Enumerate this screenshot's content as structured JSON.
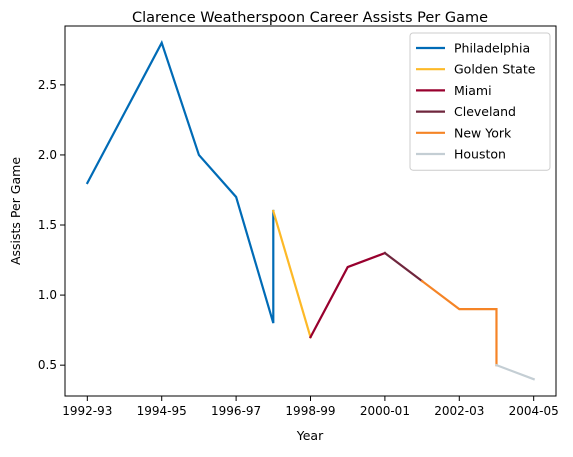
{
  "chart_data": {
    "type": "line",
    "title": "Clarence Weatherspoon Career Assists Per Game",
    "xlabel": "Year",
    "ylabel": "Assists Per Game",
    "x_tick_labels": [
      "1992-93",
      "1994-95",
      "1996-97",
      "1998-99",
      "2000-01",
      "2002-03",
      "2004-05"
    ],
    "x_tick_positions": [
      0,
      2,
      4,
      6,
      8,
      10,
      12
    ],
    "y_ticks": [
      0.5,
      1.0,
      1.5,
      2.0,
      2.5
    ],
    "y_tick_labels": [
      "0.5",
      "1.0",
      "1.5",
      "2.0",
      "2.5"
    ],
    "xlim": [
      -0.6,
      12.6
    ],
    "ylim": [
      0.28,
      2.92
    ],
    "grid": false,
    "legend_position": "top-right",
    "series": [
      {
        "name": "Philadelphia",
        "color": "#006bb6",
        "points": [
          [
            0,
            1.8
          ],
          [
            1,
            2.3
          ],
          [
            2,
            2.8
          ],
          [
            3,
            2.0
          ],
          [
            4,
            1.7
          ],
          [
            5,
            0.8
          ],
          [
            5,
            1.6
          ]
        ]
      },
      {
        "name": "Golden State",
        "color": "#fdb927",
        "points": [
          [
            5,
            1.6
          ],
          [
            6,
            0.7
          ]
        ]
      },
      {
        "name": "Miami",
        "color": "#98002e",
        "points": [
          [
            6,
            0.7
          ],
          [
            7,
            1.2
          ],
          [
            8,
            1.3
          ]
        ]
      },
      {
        "name": "Cleveland",
        "color": "#6f263d",
        "points": [
          [
            8,
            1.3
          ],
          [
            9,
            1.1
          ]
        ]
      },
      {
        "name": "New York",
        "color": "#f58426",
        "points": [
          [
            9,
            1.1
          ],
          [
            10,
            0.9
          ],
          [
            11,
            0.9
          ],
          [
            11,
            0.5
          ]
        ]
      },
      {
        "name": "Houston",
        "color": "#c4ced4",
        "points": [
          [
            11,
            0.5
          ],
          [
            12,
            0.4
          ]
        ]
      }
    ]
  }
}
